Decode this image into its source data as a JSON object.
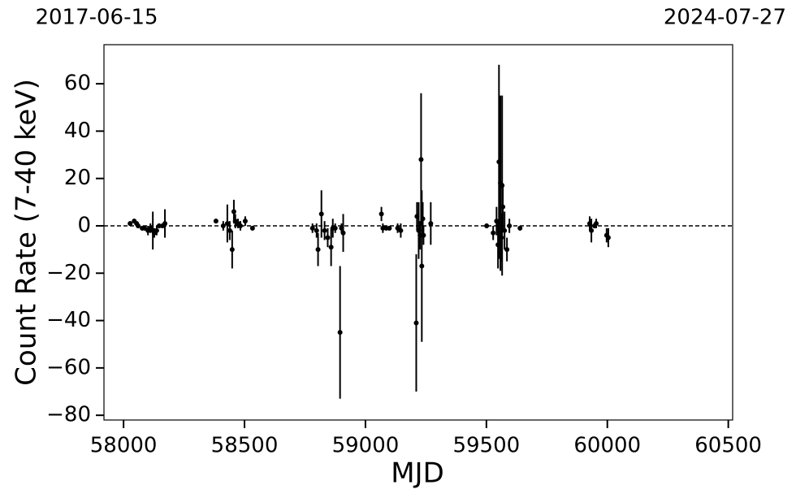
{
  "chart_data": {
    "type": "scatter",
    "xlabel": "MJD",
    "ylabel": "Count Rate (7-40 keV)",
    "color": "#000000",
    "hline": 0,
    "xlim": [
      57919,
      60518
    ],
    "ylim": [
      -82,
      76.5
    ],
    "xticks": [
      58000,
      58500,
      59000,
      59500,
      60000,
      60500
    ],
    "yticks": [
      {
        "value": -80,
        "label": "−80"
      },
      {
        "value": -60,
        "label": "−60"
      },
      {
        "value": -40,
        "label": "−40"
      },
      {
        "value": -20,
        "label": "−20"
      },
      0,
      20,
      40,
      60
    ],
    "x2ticks": [
      {
        "value": 57919,
        "label": "2017-06-15"
      },
      {
        "value": 60518,
        "label": "2024-07-27"
      }
    ],
    "x": [
      58027,
      58044,
      58054,
      58060,
      58077,
      58087,
      58101,
      58111,
      58121,
      58127,
      58137,
      58147,
      58161,
      58171,
      58382,
      58412,
      58429,
      58439,
      58449,
      58456,
      58462,
      58473,
      58483,
      58503,
      58533,
      58781,
      58798,
      58804,
      58818,
      58831,
      58844,
      58858,
      58865,
      58875,
      58895,
      58901,
      58908,
      59066,
      59072,
      59086,
      59099,
      59133,
      59146,
      59210,
      59213,
      59220,
      59226,
      59230,
      59233,
      59237,
      59240,
      59270,
      59501,
      59528,
      59542,
      59548,
      59552,
      59558,
      59562,
      59565,
      59568,
      59575,
      59585,
      59595,
      59639,
      59927,
      59934,
      59947,
      59954,
      59997,
      60004
    ],
    "values": [
      1,
      2,
      1,
      0,
      -1,
      -1,
      -2,
      -1,
      -2,
      -3,
      -2,
      0,
      0,
      1,
      2,
      0,
      1,
      -2,
      -10,
      6,
      2,
      1,
      0,
      2,
      -1,
      -1,
      -2,
      -10,
      5,
      -2,
      -5,
      -9,
      -1,
      -1,
      -45,
      -1,
      -3,
      5,
      -1,
      -1,
      -1,
      -1,
      -2,
      -41,
      4,
      -2,
      -4,
      28,
      -17,
      3,
      -4,
      1,
      0,
      -3,
      2,
      -8,
      27,
      18,
      -5,
      17,
      8,
      -2,
      -10,
      0,
      -1,
      1,
      -2,
      0,
      1,
      -4,
      -5
    ],
    "errors": [
      1,
      1,
      1,
      1,
      1,
      1,
      2,
      2,
      8,
      2,
      2,
      1,
      1,
      6,
      1,
      2,
      8,
      4,
      8,
      5,
      3,
      2,
      2,
      2,
      1,
      2,
      3,
      7,
      10,
      4,
      4,
      8,
      4,
      2,
      28,
      2,
      8,
      3,
      2,
      1,
      1,
      2,
      3,
      29,
      6,
      12,
      6,
      28,
      32,
      7,
      4,
      9,
      1,
      3,
      6,
      10,
      41,
      37,
      10,
      38,
      10,
      8,
      5,
      3,
      1,
      3,
      5,
      1,
      2,
      3,
      4
    ]
  }
}
